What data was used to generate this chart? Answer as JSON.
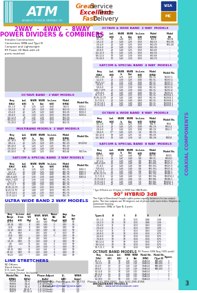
{
  "bg_color": "#ffffff",
  "teal_color": "#3ecfcf",
  "teal_text_color": "#9933cc",
  "gold_color": "#d4a830",
  "atm_bg": "#4ab8c0",
  "title1_color": "#cc00cc",
  "title2_color": "#cc00cc",
  "blue_header_color": "#0000cc",
  "red_header_color": "#cc0000",
  "section_bg": "#e8e8f8",
  "section_text_color": "#cc00cc",
  "row_alt_color": "#f0f0f0",
  "text_color": "#222222",
  "footer_link_color": "#0000cc"
}
